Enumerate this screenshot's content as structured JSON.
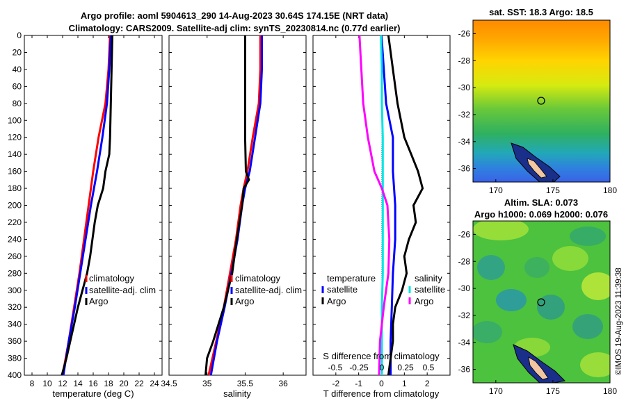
{
  "figure": {
    "title_line1": "Argo profile: aoml 5904613_290 14-Aug-2023 30.64S 174.15E (NRT data)",
    "title_line2": "Climatology: CARS2009. Satellite-adj clim: synTS_20230814.nc (0.77d earlier)",
    "credit": "©IMOS 19-Aug-2023 11:39:38"
  },
  "colors": {
    "climatology": "#ff0000",
    "satellite": "#0000ff",
    "argo": "#000000",
    "salinity_satellite": "#00e5e5",
    "salinity_argo": "#ff00ff"
  },
  "chart_data": [
    {
      "type": "line",
      "id": "temperature",
      "xlabel": "temperature (deg C)",
      "ylabel": "depth",
      "xlim": [
        7,
        25
      ],
      "ylim": [
        0,
        400
      ],
      "xticks": [
        8,
        10,
        12,
        14,
        16,
        18,
        20,
        22,
        24
      ],
      "yticks": [
        0,
        20,
        40,
        60,
        80,
        100,
        120,
        140,
        160,
        180,
        200,
        220,
        240,
        260,
        280,
        300,
        320,
        340,
        360,
        380,
        400
      ],
      "legend": [
        "climatology",
        "satellite-adj. clim",
        "Argo"
      ],
      "series": [
        {
          "name": "climatology",
          "color": "#ff0000",
          "depth": [
            0,
            40,
            80,
            120,
            160,
            200,
            240,
            280,
            320,
            360,
            400
          ],
          "values": [
            18.2,
            18.0,
            17.6,
            16.7,
            16.0,
            15.4,
            14.8,
            14.2,
            13.5,
            12.8,
            12.0
          ]
        },
        {
          "name": "satellite",
          "color": "#0000ff",
          "depth": [
            0,
            40,
            80,
            120,
            160,
            200,
            240,
            280,
            320,
            360,
            400
          ],
          "values": [
            18.3,
            18.1,
            17.8,
            17.2,
            16.5,
            15.7,
            15.0,
            14.3,
            13.6,
            12.8,
            12.1
          ]
        },
        {
          "name": "Argo",
          "color": "#000000",
          "depth": [
            0,
            40,
            80,
            120,
            140,
            160,
            180,
            200,
            220,
            240,
            260,
            280,
            300,
            320,
            340,
            360,
            380,
            400
          ],
          "values": [
            18.5,
            18.4,
            18.3,
            18.2,
            18.1,
            17.6,
            17.3,
            16.6,
            16.2,
            15.9,
            15.6,
            15.2,
            14.6,
            14.0,
            13.5,
            13.0,
            12.5,
            11.9
          ]
        }
      ]
    },
    {
      "type": "line",
      "id": "salinity",
      "xlabel": "salinity",
      "xlim": [
        34.5,
        36.3
      ],
      "ylim": [
        0,
        400
      ],
      "xticks": [
        34.5,
        35,
        35.5,
        36
      ],
      "legend": [
        "climatology",
        "satellite-adj. clim",
        "Argo"
      ],
      "series": [
        {
          "name": "climatology",
          "color": "#ff0000",
          "depth": [
            0,
            40,
            80,
            120,
            160,
            180,
            200,
            240,
            280,
            320,
            360,
            400
          ],
          "values": [
            35.7,
            35.7,
            35.68,
            35.6,
            35.53,
            35.48,
            35.44,
            35.38,
            35.3,
            35.22,
            35.12,
            35.02
          ]
        },
        {
          "name": "satellite",
          "color": "#0000ff",
          "depth": [
            0,
            40,
            80,
            120,
            160,
            180,
            200,
            240,
            280,
            320,
            360,
            400
          ],
          "values": [
            35.72,
            35.72,
            35.7,
            35.63,
            35.56,
            35.5,
            35.46,
            35.4,
            35.32,
            35.23,
            35.13,
            35.05
          ]
        },
        {
          "name": "Argo",
          "color": "#000000",
          "depth": [
            0,
            20,
            40,
            80,
            120,
            160,
            170,
            180,
            200,
            240,
            280,
            320,
            360,
            380,
            400
          ],
          "values": [
            35.5,
            35.5,
            35.5,
            35.5,
            35.5,
            35.51,
            35.55,
            35.48,
            35.46,
            35.39,
            35.33,
            35.22,
            35.08,
            35.0,
            34.98
          ]
        }
      ]
    },
    {
      "type": "line",
      "id": "differences",
      "xlabel": "T difference from climatology",
      "secondary_xlabel": "S difference from climatology",
      "xlim": [
        -3,
        3
      ],
      "ylim": [
        0,
        400
      ],
      "xticks": [
        -2,
        -1,
        0,
        1,
        2
      ],
      "secondary_xtick_labels": [
        "-0.5",
        "-0.25",
        "0",
        "0.25",
        "0.5"
      ],
      "legend_temperature_title": "temperature",
      "legend_salinity_title": "salinity",
      "legend_temperature": [
        "satellite",
        "Argo"
      ],
      "legend_salinity": [
        "satellite",
        "Argo"
      ],
      "series": [
        {
          "name": "T satellite",
          "color": "#0000ff",
          "depth": [
            0,
            40,
            80,
            120,
            160,
            200,
            240,
            280,
            320,
            360,
            400
          ],
          "values": [
            0.0,
            0.1,
            0.2,
            0.5,
            0.5,
            0.6,
            0.6,
            0.5,
            0.45,
            0.4,
            0.4
          ]
        },
        {
          "name": "T Argo",
          "color": "#000000",
          "depth": [
            0,
            40,
            80,
            120,
            140,
            160,
            180,
            200,
            220,
            240,
            260,
            280,
            300,
            320,
            340,
            360,
            380,
            400
          ],
          "values": [
            0.3,
            0.5,
            0.7,
            1.0,
            1.3,
            1.6,
            1.8,
            1.4,
            1.5,
            1.2,
            1.0,
            1.1,
            0.9,
            0.6,
            0.5,
            0.5,
            0.4,
            0.3
          ]
        },
        {
          "name": "S satellite",
          "color": "#00e5e5",
          "depth": [
            0,
            40,
            80,
            120,
            160,
            200,
            240,
            280,
            320,
            360,
            400
          ],
          "values": [
            -0.01,
            0.0,
            0.0,
            0.01,
            0.01,
            0.01,
            0.01,
            0.01,
            0.0,
            0.0,
            0.0
          ]
        },
        {
          "name": "S Argo",
          "color": "#ff00ff",
          "depth": [
            0,
            40,
            80,
            120,
            160,
            180,
            200,
            240,
            280,
            320,
            360,
            400
          ],
          "values": [
            -0.24,
            -0.22,
            -0.2,
            -0.15,
            -0.08,
            0.0,
            0.06,
            0.08,
            0.07,
            0.02,
            -0.02,
            -0.03
          ]
        }
      ]
    },
    {
      "type": "heatmap",
      "id": "sst_map",
      "title": "sat. SST: 18.3  Argo: 18.5",
      "xlim": [
        168,
        180
      ],
      "ylim": [
        -37,
        -25
      ],
      "xticks": [
        170,
        175,
        180
      ],
      "yticks": [
        -26,
        -28,
        -30,
        -32,
        -34,
        -36
      ],
      "marker": {
        "lon": 174.15,
        "lat": -30.64
      }
    },
    {
      "type": "heatmap",
      "id": "sla_map",
      "title": "Altim. SLA: 0.073",
      "subtitle": "Argo h1000: 0.069 h2000: 0.076",
      "xlim": [
        168,
        180
      ],
      "ylim": [
        -37,
        -25
      ],
      "xticks": [
        170,
        175,
        180
      ],
      "yticks": [
        -26,
        -28,
        -30,
        -32,
        -34,
        -36
      ],
      "marker": {
        "lon": 174.15,
        "lat": -30.64
      }
    }
  ]
}
